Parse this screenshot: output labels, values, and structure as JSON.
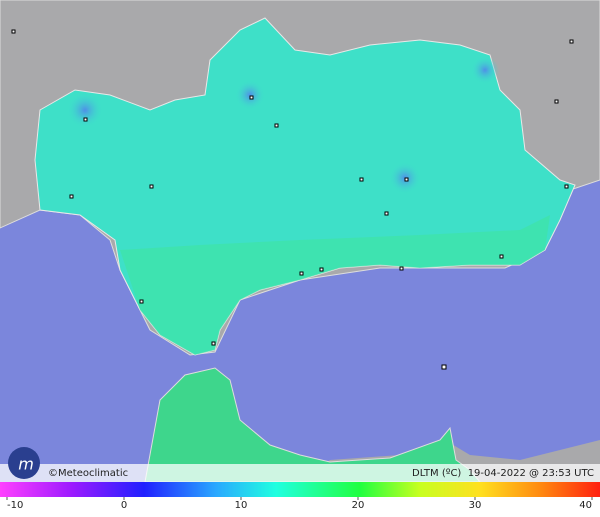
{
  "credit": "©Meteoclimatic",
  "caption": "DLTM (ºC)  19-04-2022 @ 23:53 UTC",
  "color_scale": {
    "ticks": [
      -10,
      0,
      10,
      20,
      30,
      40
    ]
  }
}
